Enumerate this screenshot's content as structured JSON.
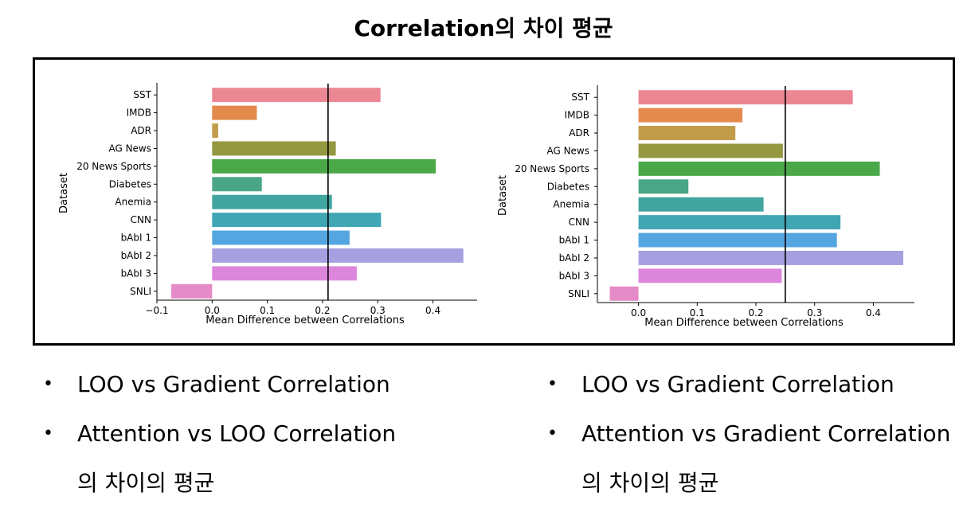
{
  "page": {
    "title": "Correlation의 차이 평균"
  },
  "colors": {
    "bars": [
      "#eb8793",
      "#e48a4c",
      "#c29b4b",
      "#949841",
      "#4aa848",
      "#4aa687",
      "#41a49f",
      "#40a6b4",
      "#55a6e0",
      "#a69fe0",
      "#dc86dc",
      "#e58bc7"
    ],
    "refline": "#000000"
  },
  "chart_data": [
    {
      "type": "bar",
      "orientation": "horizontal",
      "categories": [
        "SST",
        "IMDB",
        "ADR",
        "AG News",
        "20 News Sports",
        "Diabetes",
        "Anemia",
        "CNN",
        "bAbI 1",
        "bAbI 2",
        "bAbI 3",
        "SNLI"
      ],
      "values": [
        0.305,
        0.081,
        0.011,
        0.224,
        0.405,
        0.09,
        0.217,
        0.306,
        0.249,
        0.455,
        0.262,
        -0.074
      ],
      "xlabel": "Mean Difference between Correlations",
      "ylabel": "Dataset",
      "xlim": [
        -0.1,
        0.48
      ],
      "xticks": [
        "−0.1",
        "0.0",
        "0.1",
        "0.2",
        "0.3",
        "0.4"
      ],
      "xtick_values": [
        -0.1,
        0.0,
        0.1,
        0.2,
        0.3,
        0.4
      ],
      "reference_line": 0.21,
      "grid": false
    },
    {
      "type": "bar",
      "orientation": "horizontal",
      "categories": [
        "SST",
        "IMDB",
        "ADR",
        "AG News",
        "20 News Sports",
        "Diabetes",
        "Anemia",
        "CNN",
        "bAbI 1",
        "bAbI 2",
        "bAbI 3",
        "SNLI"
      ],
      "values": [
        0.365,
        0.177,
        0.165,
        0.246,
        0.411,
        0.085,
        0.213,
        0.344,
        0.338,
        0.451,
        0.244,
        -0.049
      ],
      "xlabel": "Mean Difference between Correlations",
      "ylabel": "Dataset",
      "xlim": [
        -0.07,
        0.47
      ],
      "xticks": [
        "0.0",
        "0.1",
        "0.2",
        "0.3",
        "0.4"
      ],
      "xtick_values": [
        0.0,
        0.1,
        0.2,
        0.3,
        0.4
      ],
      "reference_line": 0.25,
      "grid": false
    }
  ],
  "captions": [
    {
      "items": [
        "LOO vs Gradient  Correlation",
        "Attention vs LOO Correlation"
      ],
      "tail": "의 차이의 평균"
    },
    {
      "items": [
        "LOO vs Gradient  Correlation",
        "Attention vs Gradient Correlation"
      ],
      "tail": "의 차이의 평균"
    }
  ],
  "bullet": "•"
}
